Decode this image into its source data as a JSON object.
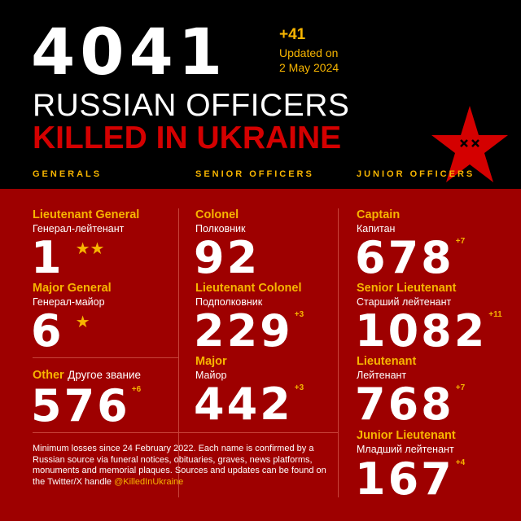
{
  "header": {
    "total": "4041",
    "delta": "+41",
    "updated_line1": "Updated on",
    "updated_line2": "2 May 2024",
    "title_line1": "RUSSIAN OFFICERS",
    "title_line2": "KILLED IN UKRAINE"
  },
  "sections": {
    "generals": "GENERALS",
    "senior": "SENIOR OFFICERS",
    "junior": "JUNIOR OFFICERS"
  },
  "generals": [
    {
      "rank": "Lieutenant General",
      "ru": "Генерал-лейтенант",
      "count": "1",
      "stars": "★★"
    },
    {
      "rank": "Major General",
      "ru": "Генерал-майор",
      "count": "6",
      "stars": "★"
    },
    {
      "rank": "Other",
      "ru": "Другое звание",
      "count": "576",
      "delta": "+6"
    }
  ],
  "senior": [
    {
      "rank": "Colonel",
      "ru": "Полковник",
      "count": "92"
    },
    {
      "rank": "Lieutenant Colonel",
      "ru": "Подполковник",
      "count": "229",
      "delta": "+3"
    },
    {
      "rank": "Major",
      "ru": "Майор",
      "count": "442",
      "delta": "+3"
    }
  ],
  "junior": [
    {
      "rank": "Captain",
      "ru": "Капитан",
      "count": "678",
      "delta": "+7"
    },
    {
      "rank": "Senior Lieutenant",
      "ru": "Старший лейтенант",
      "count": "1082",
      "delta": "+11"
    },
    {
      "rank": "Lieutenant",
      "ru": "Лейтенант",
      "count": "768",
      "delta": "+7"
    },
    {
      "rank": "Junior Lieutenant",
      "ru": "Младший лейтенант",
      "count": "167",
      "delta": "+4"
    }
  ],
  "footer": {
    "text": "Minimum losses since 24 February 2022. Each name is confirmed by a Russian source via funeral notices, obituaries, graves, news platforms, monuments and memorial plaques. Sources and updates can be found on the Twitter/X handle ",
    "handle": "@KilledInUkraine"
  },
  "colors": {
    "black": "#000000",
    "red_bg": "#9e0000",
    "accent_red": "#d40000",
    "yellow": "#f7b500"
  },
  "icons": {
    "logo": "red-star-with-x-eyes"
  }
}
